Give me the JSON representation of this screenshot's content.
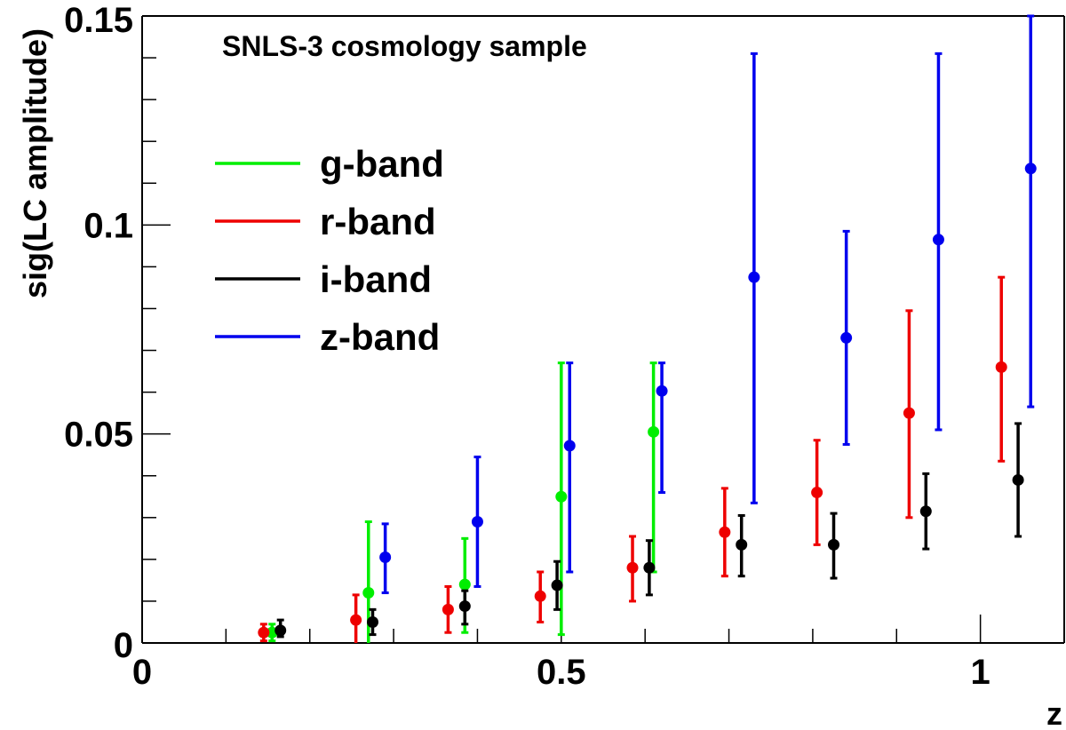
{
  "chart_data": {
    "type": "scatter",
    "title": "SNLS-3 cosmology sample",
    "xlabel": "z",
    "ylabel": "sig(LC amplitude)",
    "xlim": [
      0,
      1.1
    ],
    "ylim": [
      0,
      0.15
    ],
    "x_ticks": [
      0,
      0.5,
      1
    ],
    "x_tick_labels": [
      "0",
      "0.5",
      "1"
    ],
    "y_ticks": [
      0,
      0.05,
      0.1,
      0.15
    ],
    "y_tick_labels": [
      "0",
      "0.05",
      "0.1",
      "0.15"
    ],
    "grid": false,
    "legend_position": "left",
    "series": [
      {
        "name": "g-band",
        "color": "#00ee00",
        "x": [
          0.155,
          0.27,
          0.385,
          0.5,
          0.61
        ],
        "y": [
          0.0025,
          0.012,
          0.014,
          0.035,
          0.0505
        ],
        "y_low": [
          0.0005,
          0.0,
          0.0025,
          0.002,
          0.017
        ],
        "y_high": [
          0.0045,
          0.029,
          0.025,
          0.067,
          0.067
        ]
      },
      {
        "name": "r-band",
        "color": "#ee0000",
        "x": [
          0.145,
          0.255,
          0.365,
          0.475,
          0.585,
          0.695,
          0.805,
          0.915,
          1.025
        ],
        "y": [
          0.0025,
          0.0055,
          0.008,
          0.0112,
          0.018,
          0.0265,
          0.036,
          0.055,
          0.066
        ],
        "y_low": [
          0.0005,
          0.0,
          0.0025,
          0.005,
          0.01,
          0.016,
          0.0235,
          0.03,
          0.0435
        ],
        "y_high": [
          0.0045,
          0.0115,
          0.0135,
          0.017,
          0.0255,
          0.037,
          0.0485,
          0.0795,
          0.0875
        ]
      },
      {
        "name": "i-band",
        "color": "#000000",
        "x": [
          0.165,
          0.275,
          0.385,
          0.495,
          0.605,
          0.715,
          0.825,
          0.935,
          1.045
        ],
        "y": [
          0.003,
          0.005,
          0.0088,
          0.0138,
          0.018,
          0.0235,
          0.0235,
          0.0315,
          0.039
        ],
        "y_low": [
          0.0015,
          0.002,
          0.0045,
          0.008,
          0.0115,
          0.016,
          0.0155,
          0.0225,
          0.0255
        ],
        "y_high": [
          0.0055,
          0.008,
          0.0125,
          0.0195,
          0.0245,
          0.0305,
          0.031,
          0.0405,
          0.0525
        ]
      },
      {
        "name": "z-band",
        "color": "#0000ee",
        "x": [
          0.29,
          0.4,
          0.51,
          0.62,
          0.73,
          0.84,
          0.95,
          1.06
        ],
        "y": [
          0.0205,
          0.029,
          0.0472,
          0.0603,
          0.0875,
          0.073,
          0.0965,
          0.1135
        ],
        "y_low": [
          0.012,
          0.0135,
          0.017,
          0.036,
          0.0335,
          0.0475,
          0.051,
          0.0565
        ],
        "y_high": [
          0.0285,
          0.0445,
          0.067,
          0.067,
          0.141,
          0.0985,
          0.141,
          0.15
        ]
      }
    ]
  }
}
